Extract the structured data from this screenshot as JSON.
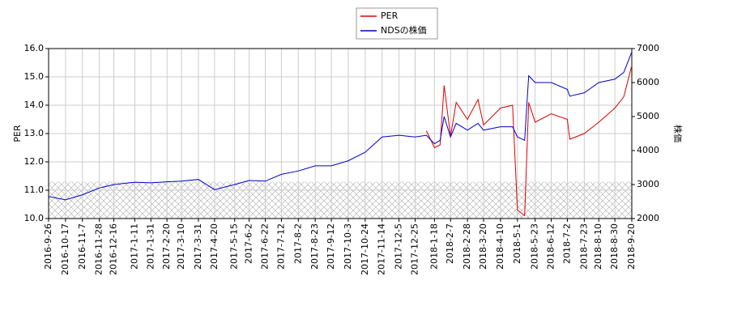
{
  "chart_data": {
    "type": "line",
    "x": [
      "2016-9-26",
      "2016-10-17",
      "2016-11-7",
      "2016-11-28",
      "2016-12-16",
      "2017-1-11",
      "2017-1-31",
      "2017-2-20",
      "2017-3-10",
      "2017-3-31",
      "2017-4-20",
      "2017-5-15",
      "2017-6-2",
      "2017-6-22",
      "2017-7-12",
      "2017-8-2",
      "2017-8-23",
      "2017-9-12",
      "2017-10-3",
      "2017-10-24",
      "2017-11-14",
      "2017-12-5",
      "2017-12-25",
      "2018-1-8",
      "2018-1-18",
      "2018-1-25",
      "2018-1-30",
      "2018-2-7",
      "2018-2-14",
      "2018-2-28",
      "2018-3-13",
      "2018-3-20",
      "2018-4-10",
      "2018-4-25",
      "2018-5-1",
      "2018-5-10",
      "2018-5-15",
      "2018-5-23",
      "2018-6-12",
      "2018-7-2",
      "2018-7-5",
      "2018-7-23",
      "2018-8-10",
      "2018-8-30",
      "2018-9-10",
      "2018-9-20"
    ],
    "series": [
      {
        "name": "PER",
        "color": "#dd0000",
        "axis": "y",
        "values": [
          null,
          null,
          null,
          null,
          null,
          null,
          null,
          null,
          null,
          null,
          null,
          null,
          null,
          null,
          null,
          null,
          null,
          null,
          null,
          null,
          null,
          null,
          null,
          13.1,
          12.5,
          12.6,
          14.7,
          12.9,
          14.1,
          13.5,
          14.2,
          13.3,
          13.9,
          14.0,
          10.3,
          10.1,
          14.1,
          13.4,
          13.7,
          13.5,
          12.8,
          13.0,
          13.4,
          13.9,
          14.3,
          15.4
        ]
      },
      {
        "name": "NDSの株価",
        "color": "#0000cc",
        "axis": "y2",
        "values": [
          2650,
          2550,
          2700,
          2900,
          3000,
          3070,
          3050,
          3080,
          3100,
          3150,
          2850,
          3000,
          3120,
          3100,
          3300,
          3400,
          3550,
          3550,
          3700,
          3950,
          4400,
          4450,
          4400,
          4450,
          4200,
          4300,
          5000,
          4400,
          4800,
          4600,
          4800,
          4600,
          4700,
          4700,
          4400,
          4300,
          6200,
          6000,
          6000,
          5800,
          5600,
          5700,
          6000,
          6100,
          6300,
          6900
        ]
      }
    ],
    "xticks": [
      "2016-9-26",
      "2016-10-17",
      "2016-11-7",
      "2016-11-28",
      "2016-12-16",
      "2017-1-11",
      "2017-1-31",
      "2017-2-20",
      "2017-3-10",
      "2017-3-31",
      "2017-4-20",
      "2017-5-15",
      "2017-6-2",
      "2017-6-22",
      "2017-7-12",
      "2017-8-2",
      "2017-8-23",
      "2017-9-12",
      "2017-10-3",
      "2017-10-24",
      "2017-11-14",
      "2017-12-5",
      "2017-12-25",
      "2018-1-18",
      "2018-2-7",
      "2018-2-28",
      "2018-3-20",
      "2018-4-10",
      "2018-5-1",
      "2018-5-23",
      "2018-6-12",
      "2018-7-2",
      "2018-7-23",
      "2018-8-10",
      "2018-8-30",
      "2018-9-20"
    ],
    "ylabel": "PER",
    "y2label": "株価",
    "ylim": [
      10,
      16
    ],
    "yticks": [
      {
        "value": 10,
        "label": "10.0"
      },
      {
        "value": 11,
        "label": "11.0"
      },
      {
        "value": 12,
        "label": "12.0"
      },
      {
        "value": 13,
        "label": "13.0"
      },
      {
        "value": 14,
        "label": "14.0"
      },
      {
        "value": 15,
        "label": "15.0"
      },
      {
        "value": 16,
        "label": "16.0"
      }
    ],
    "y2lim": [
      2000,
      7000
    ],
    "y2ticks": [
      2000,
      3000,
      4000,
      5000,
      6000,
      7000
    ],
    "hatch_band": [
      10,
      11.3
    ],
    "grid": true,
    "legend": "top"
  }
}
